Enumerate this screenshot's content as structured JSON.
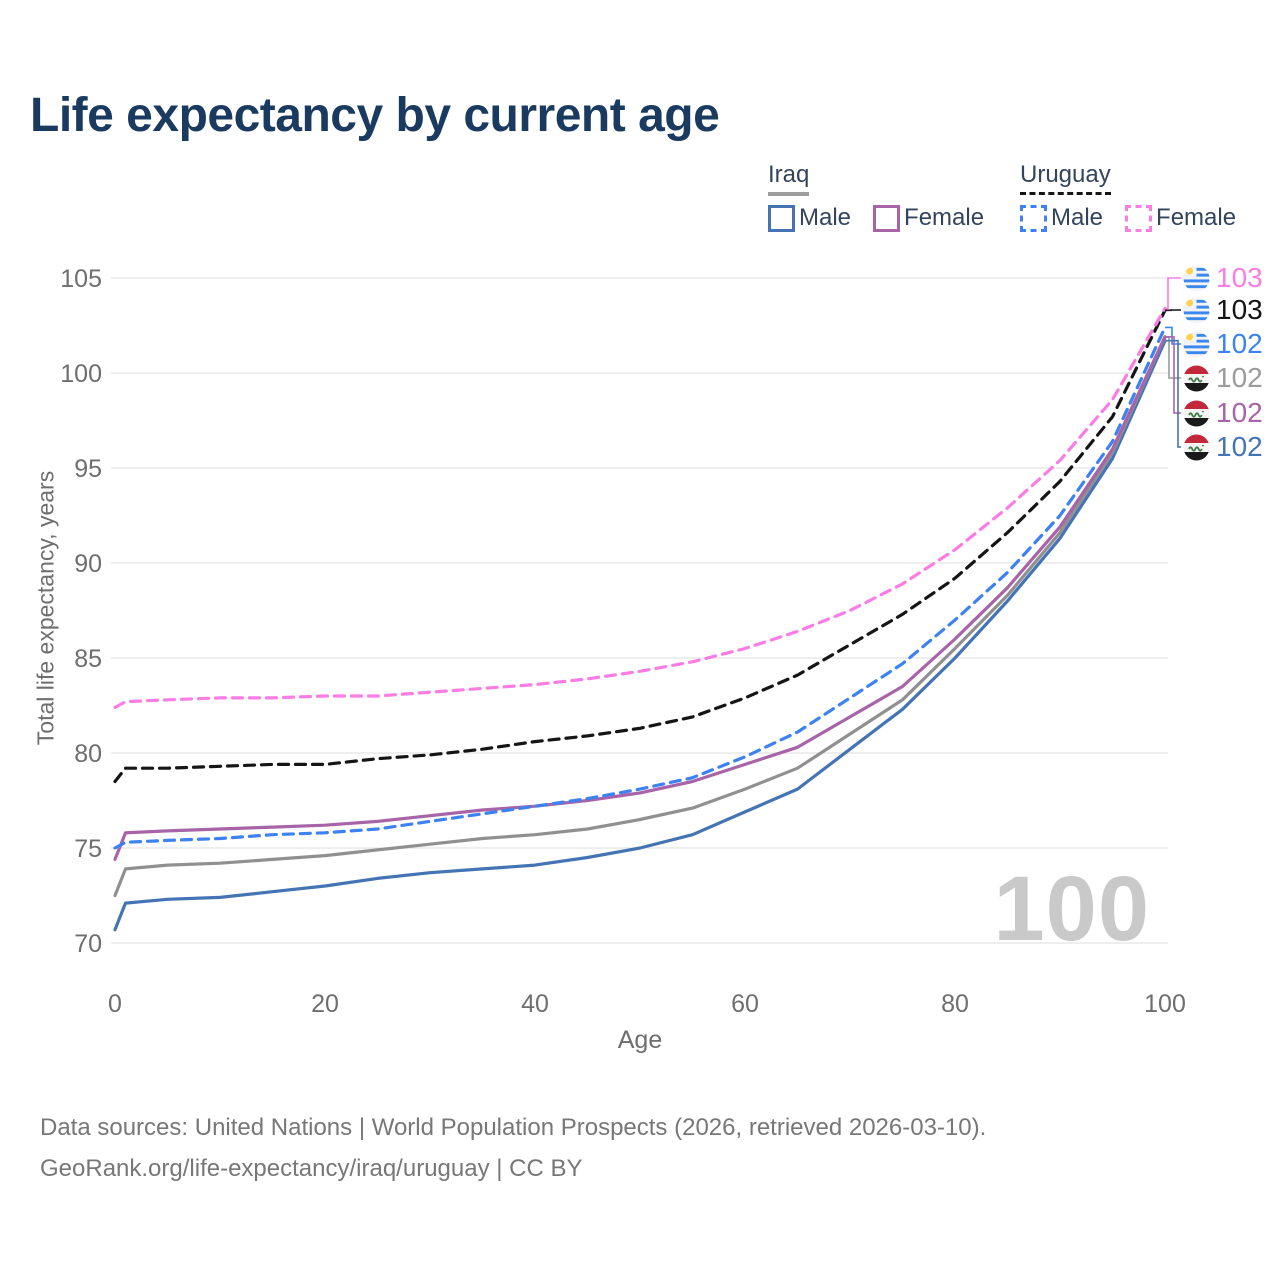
{
  "title": "Life expectancy by current age",
  "legend": {
    "groups": [
      {
        "country": "Iraq",
        "line_style": "solid",
        "underline_color": "#9e9e9e",
        "items": [
          {
            "label": "Male",
            "color": "#4474b4",
            "dashed": false
          },
          {
            "label": "Female",
            "color": "#a864a8",
            "dashed": false
          }
        ]
      },
      {
        "country": "Uruguay",
        "line_style": "dashed",
        "underline_color": "#151515",
        "items": [
          {
            "label": "Male",
            "color": "#3d82f0",
            "dashed": true
          },
          {
            "label": "Female",
            "color": "#fa7de4",
            "dashed": true
          }
        ]
      }
    ]
  },
  "chart_data": {
    "type": "line",
    "title": "Life expectancy by current age",
    "xlabel": "Age",
    "ylabel": "Total life expectancy, years",
    "xlim": [
      0,
      100
    ],
    "ylim": [
      70,
      105
    ],
    "x_ticks": [
      0,
      20,
      40,
      60,
      80,
      100
    ],
    "y_ticks": [
      70,
      75,
      80,
      85,
      90,
      95,
      100,
      105
    ],
    "grid": "horizontal",
    "legend_position": "top-right",
    "x": [
      0,
      1,
      5,
      10,
      15,
      20,
      25,
      30,
      35,
      40,
      45,
      50,
      55,
      60,
      65,
      70,
      75,
      80,
      85,
      90,
      95,
      100
    ],
    "series": [
      {
        "name": "Iraq Male",
        "country": "Iraq",
        "sex": "Male",
        "color": "#4474b4",
        "dashed": false,
        "values": [
          70.7,
          72.1,
          72.3,
          72.4,
          72.7,
          73.0,
          73.4,
          73.7,
          73.9,
          74.1,
          74.5,
          75.0,
          75.7,
          76.9,
          78.1,
          80.2,
          82.3,
          85.0,
          88.0,
          91.3,
          95.5,
          101.7
        ]
      },
      {
        "name": "Iraq Both sexes",
        "country": "Iraq",
        "sex": "Both",
        "color": "#909090",
        "dashed": false,
        "values": [
          72.5,
          73.9,
          74.1,
          74.2,
          74.4,
          74.6,
          74.9,
          75.2,
          75.5,
          75.7,
          76.0,
          76.5,
          77.1,
          78.1,
          79.2,
          81.0,
          82.8,
          85.5,
          88.3,
          91.6,
          95.8,
          101.9
        ]
      },
      {
        "name": "Iraq Female",
        "country": "Iraq",
        "sex": "Female",
        "color": "#a864a8",
        "dashed": false,
        "values": [
          74.4,
          75.8,
          75.9,
          76.0,
          76.1,
          76.2,
          76.4,
          76.7,
          77.0,
          77.2,
          77.5,
          77.9,
          78.5,
          79.4,
          80.3,
          81.9,
          83.5,
          86.0,
          88.7,
          91.9,
          96.0,
          101.9
        ]
      },
      {
        "name": "Uruguay Male",
        "country": "Uruguay",
        "sex": "Male",
        "color": "#3d82f0",
        "dashed": true,
        "values": [
          75.0,
          75.3,
          75.4,
          75.5,
          75.7,
          75.8,
          76.0,
          76.4,
          76.8,
          77.2,
          77.6,
          78.1,
          78.7,
          79.8,
          81.1,
          82.9,
          84.7,
          87.0,
          89.5,
          92.5,
          96.4,
          102.4
        ]
      },
      {
        "name": "Uruguay Both sexes",
        "country": "Uruguay",
        "sex": "Both",
        "color": "#151515",
        "dashed": true,
        "values": [
          78.5,
          79.2,
          79.2,
          79.3,
          79.4,
          79.4,
          79.7,
          79.9,
          80.2,
          80.6,
          80.9,
          81.3,
          81.9,
          82.9,
          84.1,
          85.7,
          87.3,
          89.2,
          91.6,
          94.3,
          97.7,
          103.3
        ]
      },
      {
        "name": "Uruguay Female",
        "country": "Uruguay",
        "sex": "Female",
        "color": "#fa7de4",
        "dashed": true,
        "values": [
          82.4,
          82.7,
          82.8,
          82.9,
          82.9,
          83.0,
          83.0,
          83.2,
          83.4,
          83.6,
          83.9,
          84.3,
          84.8,
          85.5,
          86.4,
          87.5,
          88.9,
          90.7,
          92.9,
          95.4,
          98.6,
          103.4
        ]
      }
    ]
  },
  "end_labels": [
    {
      "value": "103",
      "flag": "uruguay",
      "color": "#fa7de4",
      "series": "Uruguay Female"
    },
    {
      "value": "103",
      "flag": "uruguay",
      "color": "#151515",
      "series": "Uruguay Both sexes"
    },
    {
      "value": "102",
      "flag": "uruguay",
      "color": "#3d82f0",
      "series": "Uruguay Male"
    },
    {
      "value": "102",
      "flag": "iraq",
      "color": "#9b9b9b",
      "series": "Iraq Both sexes"
    },
    {
      "value": "102",
      "flag": "iraq",
      "color": "#a864a8",
      "series": "Iraq Female"
    },
    {
      "value": "102",
      "flag": "iraq",
      "color": "#4474b4",
      "series": "Iraq Male"
    }
  ],
  "watermark": "100",
  "footer": {
    "line1": "Data sources: United Nations | World Population Prospects (2026, retrieved 2026-03-10).",
    "line2": "GeoRank.org/life-expectancy/iraq/uruguay | CC BY"
  },
  "colors": {
    "title": "#1a3a5f",
    "axis_text": "#6e6e6e",
    "grid": "#e9e9e9",
    "watermark": "#c9c9c9",
    "footer_text": "#777777",
    "legend_text": "#33445c"
  }
}
